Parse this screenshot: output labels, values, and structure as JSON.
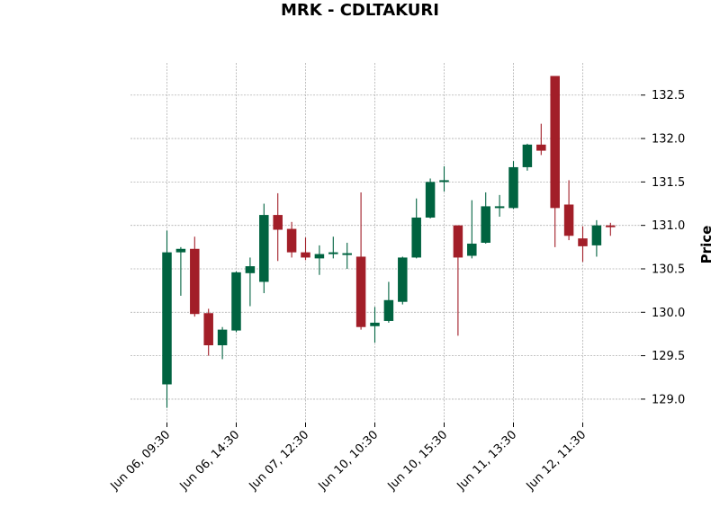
{
  "chart_data": {
    "type": "candlestick",
    "title": "MRK - CDLTAKURI",
    "ylabel": "Price",
    "ylim": [
      128.73,
      132.87
    ],
    "grid": true,
    "colors": {
      "up": "#006340",
      "down": "#a21e28"
    },
    "yticks": [
      "129.0",
      "129.5",
      "130.0",
      "130.5",
      "131.0",
      "131.5",
      "132.0",
      "132.5"
    ],
    "xtick_labels": [
      {
        "index": 0,
        "label": "Jun 06, 09:30"
      },
      {
        "index": 5,
        "label": "Jun 06, 14:30"
      },
      {
        "index": 10,
        "label": "Jun 07, 12:30"
      },
      {
        "index": 15,
        "label": "Jun 10, 10:30"
      },
      {
        "index": 20,
        "label": "Jun 10, 15:30"
      },
      {
        "index": 25,
        "label": "Jun 11, 13:30"
      },
      {
        "index": 30,
        "label": "Jun 12, 11:30"
      }
    ],
    "candles": [
      {
        "o": 129.17,
        "h": 130.94,
        "l": 128.9,
        "c": 130.69
      },
      {
        "o": 130.69,
        "h": 130.75,
        "l": 130.19,
        "c": 130.73
      },
      {
        "o": 130.73,
        "h": 130.87,
        "l": 129.95,
        "c": 129.98
      },
      {
        "o": 129.99,
        "h": 130.04,
        "l": 129.5,
        "c": 129.62
      },
      {
        "o": 129.62,
        "h": 129.83,
        "l": 129.46,
        "c": 129.8
      },
      {
        "o": 129.79,
        "h": 130.47,
        "l": 129.77,
        "c": 130.46
      },
      {
        "o": 130.45,
        "h": 130.63,
        "l": 130.07,
        "c": 130.53
      },
      {
        "o": 130.35,
        "h": 131.25,
        "l": 130.22,
        "c": 131.12
      },
      {
        "o": 131.12,
        "h": 131.37,
        "l": 130.59,
        "c": 130.95
      },
      {
        "o": 130.96,
        "h": 131.04,
        "l": 130.63,
        "c": 130.69
      },
      {
        "o": 130.69,
        "h": 130.86,
        "l": 130.6,
        "c": 130.63
      },
      {
        "o": 130.62,
        "h": 130.77,
        "l": 130.43,
        "c": 130.67
      },
      {
        "o": 130.67,
        "h": 130.87,
        "l": 130.62,
        "c": 130.69
      },
      {
        "o": 130.68,
        "h": 130.8,
        "l": 130.5,
        "c": 130.68
      },
      {
        "o": 130.64,
        "h": 131.38,
        "l": 129.8,
        "c": 129.83
      },
      {
        "o": 129.84,
        "h": 130.06,
        "l": 129.65,
        "c": 129.88
      },
      {
        "o": 129.9,
        "h": 130.35,
        "l": 129.88,
        "c": 130.14
      },
      {
        "o": 130.12,
        "h": 130.64,
        "l": 130.09,
        "c": 130.63
      },
      {
        "o": 130.63,
        "h": 131.31,
        "l": 130.62,
        "c": 131.09
      },
      {
        "o": 131.09,
        "h": 131.54,
        "l": 131.08,
        "c": 131.5
      },
      {
        "o": 131.5,
        "h": 131.68,
        "l": 131.39,
        "c": 131.52
      },
      {
        "o": 131.0,
        "h": 131.0,
        "l": 129.73,
        "c": 130.63
      },
      {
        "o": 130.65,
        "h": 131.29,
        "l": 130.62,
        "c": 130.79
      },
      {
        "o": 130.8,
        "h": 131.38,
        "l": 130.79,
        "c": 131.22
      },
      {
        "o": 131.2,
        "h": 131.35,
        "l": 131.1,
        "c": 131.22
      },
      {
        "o": 131.2,
        "h": 131.74,
        "l": 131.19,
        "c": 131.67
      },
      {
        "o": 131.67,
        "h": 131.94,
        "l": 131.63,
        "c": 131.93
      },
      {
        "o": 131.93,
        "h": 132.17,
        "l": 131.81,
        "c": 131.86
      },
      {
        "o": 132.72,
        "h": 132.72,
        "l": 130.75,
        "c": 131.2
      },
      {
        "o": 131.24,
        "h": 131.52,
        "l": 130.83,
        "c": 130.88
      },
      {
        "o": 130.85,
        "h": 130.99,
        "l": 130.58,
        "c": 130.76
      },
      {
        "o": 130.77,
        "h": 131.06,
        "l": 130.64,
        "c": 131.0
      },
      {
        "o": 131.0,
        "h": 131.03,
        "l": 130.88,
        "c": 130.98
      }
    ]
  }
}
